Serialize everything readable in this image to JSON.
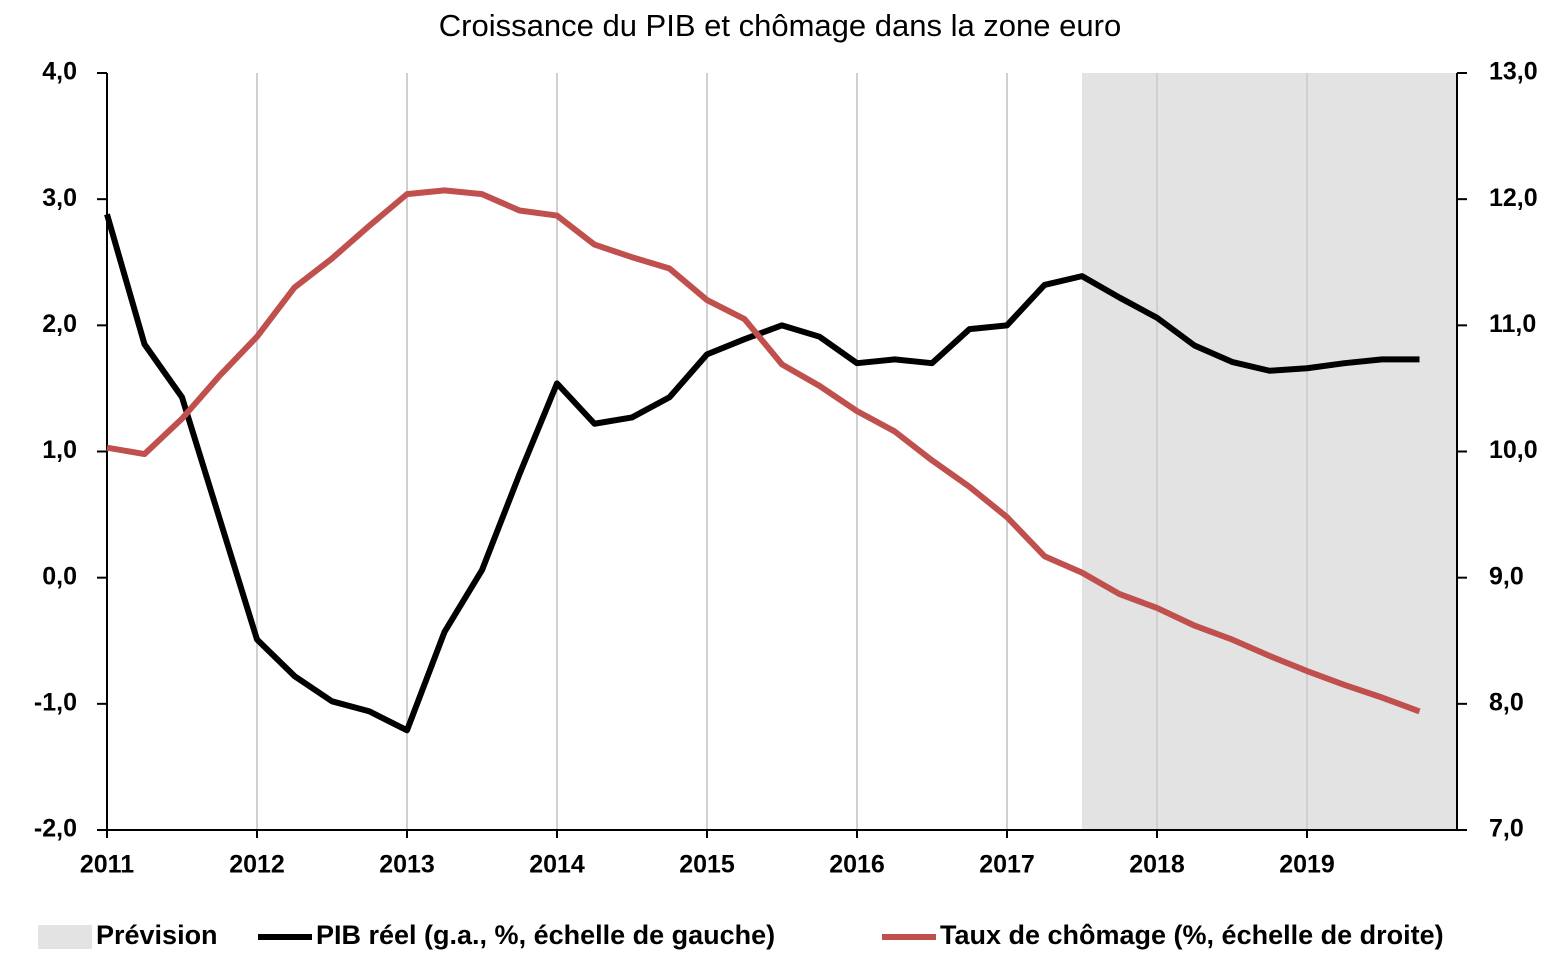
{
  "chart_data": {
    "type": "line",
    "title": "Croissance du PIB et chômage dans la zone euro",
    "x": [
      2011,
      2011.25,
      2011.5,
      2011.75,
      2012,
      2012.25,
      2012.5,
      2012.75,
      2013,
      2013.25,
      2013.5,
      2013.75,
      2014,
      2014.25,
      2014.5,
      2014.75,
      2015,
      2015.25,
      2015.5,
      2015.75,
      2016,
      2016.25,
      2016.5,
      2016.75,
      2017,
      2017.25,
      2017.5,
      2017.75,
      2018,
      2018.25,
      2018.5,
      2018.75,
      2019,
      2019.25,
      2019.5,
      2019.75
    ],
    "series": [
      {
        "name": "PIB réel (g.a., %, échelle de gauche)",
        "color": "#000000",
        "axis": "y",
        "values": [
          2.88,
          1.85,
          1.43,
          0.47,
          -0.49,
          -0.78,
          -0.98,
          -1.06,
          -1.21,
          -0.43,
          0.06,
          0.82,
          1.54,
          1.22,
          1.27,
          1.43,
          1.77,
          1.89,
          2.0,
          1.91,
          1.7,
          1.73,
          1.7,
          1.97,
          2.0,
          2.32,
          2.39,
          2.22,
          2.06,
          1.84,
          1.71,
          1.64,
          1.66,
          1.7,
          1.73,
          1.73
        ]
      },
      {
        "name": "Taux de chômage (%, échelle de droite)",
        "color": "#c0504d",
        "axis": "y2",
        "values": [
          10.03,
          9.98,
          10.26,
          10.6,
          10.91,
          11.3,
          11.53,
          11.79,
          12.04,
          12.07,
          12.04,
          11.91,
          11.87,
          11.64,
          11.54,
          11.45,
          11.2,
          11.05,
          10.69,
          10.52,
          10.32,
          10.16,
          9.93,
          9.72,
          9.48,
          9.17,
          9.04,
          8.87,
          8.76,
          8.62,
          8.51,
          8.38,
          8.26,
          8.15,
          8.05,
          7.94
        ]
      }
    ],
    "shaded_region": {
      "label": "Prévision",
      "x": [
        2017.5,
        2020
      ],
      "color": "#e3e3e3"
    },
    "xlim": [
      2011,
      2020
    ],
    "xticks": [
      2011,
      2012,
      2013,
      2014,
      2015,
      2016,
      2017,
      2018,
      2019
    ],
    "ylim": [
      -2,
      4
    ],
    "yticks": [
      {
        "value": -2,
        "label": "-2,0"
      },
      {
        "value": -1,
        "label": "-1,0"
      },
      {
        "value": 0,
        "label": "0,0"
      },
      {
        "value": 1,
        "label": "1,0"
      },
      {
        "value": 2,
        "label": "2,0"
      },
      {
        "value": 3,
        "label": "3,0"
      },
      {
        "value": 4,
        "label": "4,0"
      }
    ],
    "y2lim": [
      7,
      13
    ],
    "y2ticks": [
      {
        "value": 7,
        "label": "7,0"
      },
      {
        "value": 8,
        "label": "8,0"
      },
      {
        "value": 9,
        "label": "9,0"
      },
      {
        "value": 10,
        "label": "10,0"
      },
      {
        "value": 11,
        "label": "11,0"
      },
      {
        "value": 12,
        "label": "12,0"
      },
      {
        "value": 13,
        "label": "13,0"
      }
    ],
    "grid": true
  }
}
